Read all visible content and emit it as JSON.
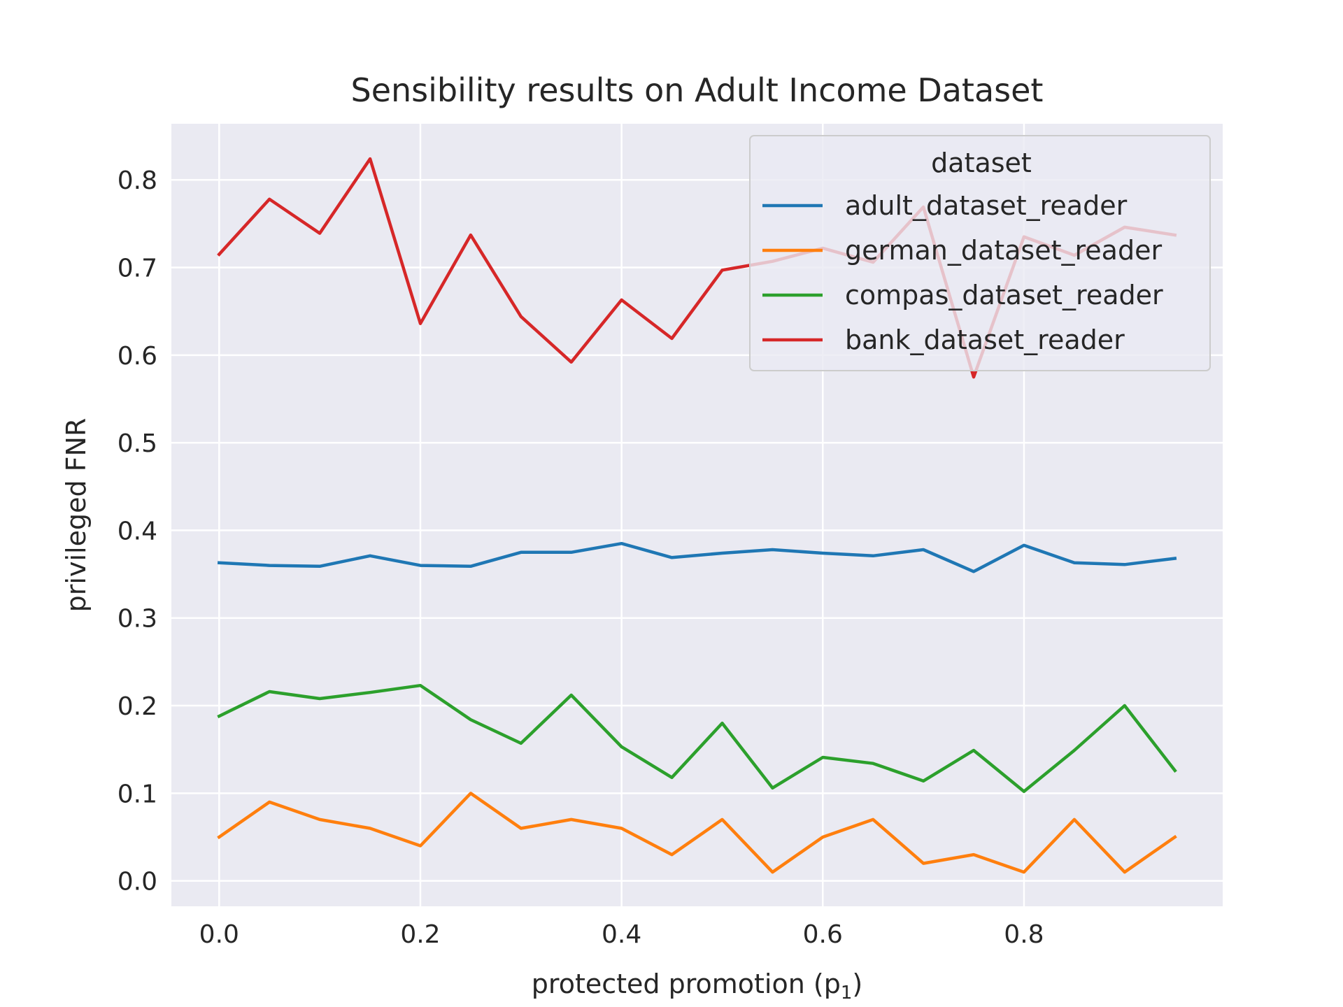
{
  "chart_data": {
    "type": "line",
    "title": "Sensibility results on Adult Income Dataset",
    "xlabel": "protected promotion (p",
    "xlabel_subscript": "1",
    "xlabel_suffix": ")",
    "ylabel": "privileged FNR",
    "xlim": [
      -0.0475,
      0.9975
    ],
    "ylim": [
      -0.029,
      0.864
    ],
    "xticks": [
      0.0,
      0.2,
      0.4,
      0.6,
      0.8
    ],
    "xtick_labels": [
      "0.0",
      "0.2",
      "0.4",
      "0.6",
      "0.8"
    ],
    "yticks": [
      0.0,
      0.1,
      0.2,
      0.3,
      0.4,
      0.5,
      0.6,
      0.7,
      0.8
    ],
    "ytick_labels": [
      "0.0",
      "0.1",
      "0.2",
      "0.3",
      "0.4",
      "0.5",
      "0.6",
      "0.7",
      "0.8"
    ],
    "grid": true,
    "legend": {
      "title": "dataset",
      "placement": "upper right"
    },
    "x": [
      0.0,
      0.05,
      0.1,
      0.15,
      0.2,
      0.25,
      0.3,
      0.35,
      0.4,
      0.45,
      0.5,
      0.55,
      0.6,
      0.65,
      0.7,
      0.75,
      0.8,
      0.85,
      0.9,
      0.95
    ],
    "series": [
      {
        "name": "adult_dataset_reader",
        "color": "#1f77b4",
        "values": [
          0.363,
          0.36,
          0.359,
          0.371,
          0.36,
          0.359,
          0.375,
          0.375,
          0.385,
          0.369,
          0.374,
          0.378,
          0.374,
          0.371,
          0.378,
          0.353,
          0.383,
          0.363,
          0.361,
          0.368
        ]
      },
      {
        "name": "german_dataset_reader",
        "color": "#ff7f0e",
        "values": [
          0.05,
          0.09,
          0.07,
          0.06,
          0.04,
          0.1,
          0.06,
          0.07,
          0.06,
          0.03,
          0.07,
          0.01,
          0.05,
          0.07,
          0.02,
          0.03,
          0.01,
          0.07,
          0.01,
          0.05
        ]
      },
      {
        "name": "compas_dataset_reader",
        "color": "#2ca02c",
        "values": [
          0.188,
          0.216,
          0.208,
          0.215,
          0.223,
          0.184,
          0.157,
          0.212,
          0.153,
          0.118,
          0.18,
          0.106,
          0.141,
          0.134,
          0.114,
          0.149,
          0.102,
          0.149,
          0.2,
          0.126
        ]
      },
      {
        "name": "bank_dataset_reader",
        "color": "#d62728",
        "values": [
          0.715,
          0.778,
          0.739,
          0.824,
          0.636,
          0.737,
          0.644,
          0.592,
          0.663,
          0.619,
          0.697,
          0.707,
          0.722,
          0.706,
          0.769,
          0.575,
          0.735,
          0.714,
          0.746,
          0.737
        ]
      }
    ]
  }
}
